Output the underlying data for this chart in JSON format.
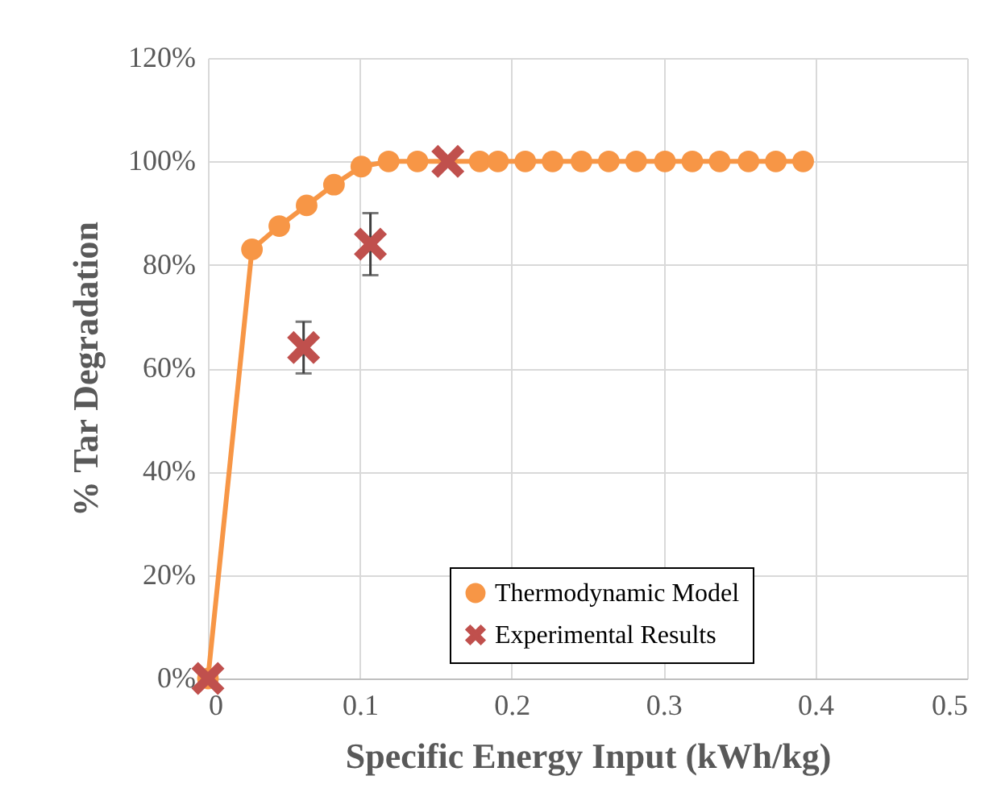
{
  "chart_data": {
    "type": "line",
    "xlabel": "Specific Energy Input (kWh/kg)",
    "ylabel": "% Tar Degradation",
    "xlim": [
      0,
      0.5
    ],
    "xticks": [
      0,
      0.1,
      0.2,
      0.3,
      0.4,
      0.5
    ],
    "ylim": [
      0,
      120
    ],
    "yticks": [
      {
        "value": 0,
        "label": "0%"
      },
      {
        "value": 20,
        "label": "20%"
      },
      {
        "value": 40,
        "label": "40%"
      },
      {
        "value": 60,
        "label": "60%"
      },
      {
        "value": 80,
        "label": "80%"
      },
      {
        "value": 100,
        "label": "100%"
      },
      {
        "value": 120,
        "label": "120%"
      }
    ],
    "grid": true,
    "legend": "bottom right",
    "series": [
      {
        "name": "Thermodynamic Model",
        "type": "line",
        "color": "#f79646",
        "marker": "circle",
        "x": [
          0,
          0.029,
          0.047,
          0.065,
          0.083,
          0.101,
          0.119,
          0.138,
          0.179,
          0.191,
          0.209,
          0.227,
          0.246,
          0.264,
          0.282,
          0.301,
          0.319,
          0.337,
          0.356,
          0.374,
          0.392
        ],
        "values": [
          0,
          83,
          87.5,
          91.5,
          95.5,
          99,
          100,
          100,
          100,
          100,
          100,
          100,
          100,
          100,
          100,
          100,
          100,
          100,
          100,
          100,
          100
        ]
      },
      {
        "name": "Experimental Results",
        "type": "scatter",
        "color": "#c0504d",
        "marker": "cross",
        "x": [
          0,
          0.063,
          0.107,
          0.158
        ],
        "values": [
          0,
          64,
          84,
          100
        ],
        "errors": [
          null,
          [
            59,
            69
          ],
          [
            78,
            90
          ],
          null
        ]
      }
    ]
  }
}
